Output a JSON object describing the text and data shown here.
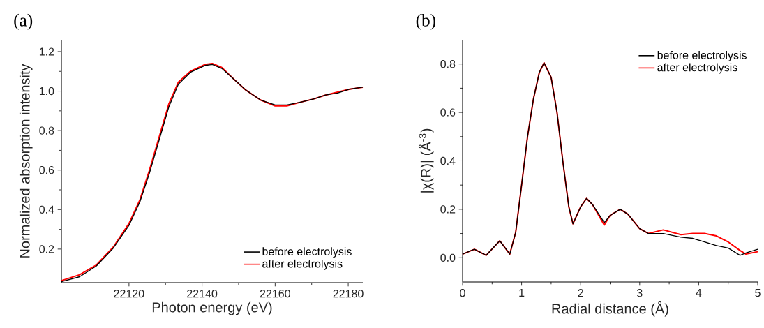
{
  "chart_data": [
    {
      "type": "line",
      "title": "(a)",
      "xlabel": "Photon energy (eV)",
      "ylabel": "Normalized absorption intensity",
      "x": [
        22101.5,
        22106.5,
        22111.1,
        22115.7,
        22120,
        22123,
        22125.6,
        22128.3,
        22130.9,
        22133.5,
        22136.8,
        22140.8,
        22142.8,
        22145.4,
        22148.7,
        22152,
        22156,
        22160,
        22163.2,
        22167.2,
        22170.5,
        22173.8,
        22177.1,
        22180.4,
        22184
      ],
      "series": [
        {
          "name": "before electrolysis",
          "color": "#000000",
          "values": [
            0.035,
            0.06,
            0.115,
            0.205,
            0.32,
            0.44,
            0.585,
            0.755,
            0.92,
            1.035,
            1.095,
            1.13,
            1.135,
            1.115,
            1.06,
            1.005,
            0.955,
            0.93,
            0.93,
            0.945,
            0.96,
            0.98,
            0.99,
            1.01,
            1.02
          ]
        },
        {
          "name": "after electrolysis",
          "color": "#ff0000",
          "values": [
            0.04,
            0.07,
            0.12,
            0.21,
            0.33,
            0.45,
            0.6,
            0.77,
            0.935,
            1.045,
            1.1,
            1.135,
            1.14,
            1.12,
            1.06,
            1.005,
            0.955,
            0.925,
            0.925,
            0.945,
            0.96,
            0.98,
            0.995,
            1.01,
            1.02
          ]
        }
      ],
      "xlim": [
        22101.5,
        22184
      ],
      "ylim": [
        0.03,
        1.26
      ],
      "xticks": [
        22120,
        22140,
        22160,
        22180
      ],
      "yticks": [
        0.2,
        0.4,
        0.6,
        0.8,
        {
          "value": 1.0,
          "label": "1.0"
        },
        1.2
      ],
      "legend": "bottom right"
    },
    {
      "type": "line",
      "title": "(b)",
      "xlabel": "Radial distance (Å)",
      "ylabel": "|χ(R)| (Å$^{-3}$)",
      "x": [
        0,
        0.2,
        0.4,
        0.63,
        0.8,
        0.9,
        1.0,
        1.1,
        1.2,
        1.3,
        1.38,
        1.5,
        1.6,
        1.7,
        1.8,
        1.87,
        2.0,
        2.1,
        2.2,
        2.4,
        2.5,
        2.67,
        2.8,
        3.0,
        3.15,
        3.4,
        3.7,
        3.9,
        4.1,
        4.3,
        4.5,
        4.7,
        4.8,
        5.0
      ],
      "series": [
        {
          "name": "before electrolysis",
          "color": "#000000",
          "values": [
            0.015,
            0.035,
            0.01,
            0.07,
            0.015,
            0.105,
            0.3,
            0.5,
            0.655,
            0.765,
            0.805,
            0.745,
            0.6,
            0.395,
            0.21,
            0.14,
            0.21,
            0.245,
            0.22,
            0.145,
            0.175,
            0.2,
            0.18,
            0.12,
            0.1,
            0.1,
            0.085,
            0.08,
            0.065,
            0.05,
            0.04,
            0.01,
            0.02,
            0.035
          ]
        },
        {
          "name": "after electrolysis",
          "color": "#ff0000",
          "values": [
            0.015,
            0.035,
            0.01,
            0.07,
            0.015,
            0.105,
            0.3,
            0.5,
            0.655,
            0.765,
            0.805,
            0.745,
            0.6,
            0.395,
            0.21,
            0.14,
            0.21,
            0.245,
            0.22,
            0.135,
            0.175,
            0.2,
            0.18,
            0.12,
            0.1,
            0.115,
            0.095,
            0.1,
            0.1,
            0.09,
            0.065,
            0.03,
            0.015,
            0.025
          ]
        }
      ],
      "xlim": [
        0,
        5
      ],
      "ylim": [
        -0.1,
        0.9
      ],
      "xticks": [
        0,
        1,
        2,
        3,
        4,
        5
      ],
      "yticks": [
        {
          "value": 0,
          "label": "0.0"
        },
        0.2,
        0.4,
        0.6,
        0.8
      ],
      "legend": "top right"
    }
  ]
}
